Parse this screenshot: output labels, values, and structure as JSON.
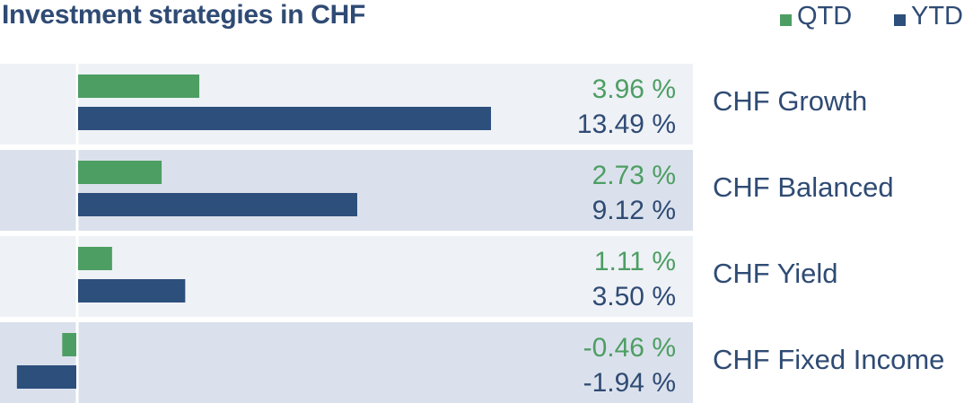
{
  "chart_data": {
    "type": "bar",
    "title": "Investment strategies in CHF",
    "categories": [
      "CHF Growth",
      "CHF Balanced",
      "CHF Yield",
      "CHF Fixed Income"
    ],
    "series": [
      {
        "name": "QTD",
        "values": [
          3.96,
          2.73,
          1.11,
          -0.46
        ],
        "labels": [
          "3.96 %",
          "2.73 %",
          "1.11 %",
          "-0.46 %"
        ]
      },
      {
        "name": "YTD",
        "values": [
          13.49,
          9.12,
          3.5,
          -1.94
        ],
        "labels": [
          "13.49 %",
          "9.12 %",
          "3.50 %",
          "-1.94 %"
        ]
      }
    ],
    "legend_position": "top-right",
    "colors": {
      "QTD": "#4d9e63",
      "YTD": "#2c4f7c",
      "row_light": "#eef1f6",
      "row_dark": "#dbe1ec",
      "text": "#2f4b74"
    }
  }
}
